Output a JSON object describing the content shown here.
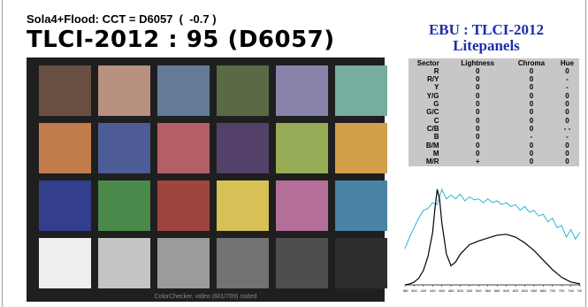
{
  "header": {
    "subtitle": "Sola4+Flood: CCT = D6057  (  -0.7 )",
    "title": "TLCI-2012 : 95 (D6057)"
  },
  "ebu": {
    "title": "EBU : TLCI-2012",
    "subtitle": "Litepanels"
  },
  "table": {
    "headers": [
      "Sector",
      "Lightness",
      "Chroma",
      "Hue"
    ],
    "rows": [
      [
        "R",
        "0",
        "0",
        "0"
      ],
      [
        "R/Y",
        "0",
        "0",
        "-"
      ],
      [
        "Y",
        "0",
        "0",
        "-"
      ],
      [
        "Y/G",
        "0",
        "0",
        "0"
      ],
      [
        "G",
        "0",
        "0",
        "0"
      ],
      [
        "G/C",
        "0",
        "0",
        "0"
      ],
      [
        "C",
        "0",
        "0",
        "0"
      ],
      [
        "C/B",
        "0",
        "0",
        "- -"
      ],
      [
        "B",
        "0",
        "-",
        "-"
      ],
      [
        "B/M",
        "0",
        "0",
        "0"
      ],
      [
        "M",
        "0",
        "0",
        "0"
      ],
      [
        "M/R",
        "+",
        "0",
        "0"
      ]
    ]
  },
  "checker": {
    "caption": "ColorChecker, video (601/709) coded",
    "background": "#1f1f1f",
    "rows": [
      [
        "#6a5042",
        "#b89080",
        "#647b98",
        "#5a6a45",
        "#8783aa",
        "#75ada0"
      ],
      [
        "#c27c4b",
        "#4e5d98",
        "#b35f65",
        "#54416a",
        "#96ac56",
        "#d2a04a"
      ],
      [
        "#333f8c",
        "#4b8a4a",
        "#a04440",
        "#d7c055",
        "#b36e99",
        "#4a83a4"
      ],
      [
        "#eeeeee",
        "#c4c4c4",
        "#9b9b9b",
        "#737373",
        "#4e4e4e",
        "#2e2e2e"
      ]
    ]
  },
  "spectrum": {
    "x_ticks": [
      "380",
      "400",
      "420",
      "440",
      "460",
      "480",
      "500",
      "520",
      "540",
      "560",
      "580",
      "600",
      "620",
      "640",
      "660",
      "680",
      "700",
      "720",
      "740",
      "760"
    ],
    "x_range": [
      380,
      760
    ],
    "test_color": "#000000",
    "reference_color": "#2bb5d4",
    "test_series": [
      [
        380,
        0.0
      ],
      [
        390,
        0.01
      ],
      [
        400,
        0.03
      ],
      [
        410,
        0.07
      ],
      [
        420,
        0.15
      ],
      [
        430,
        0.3
      ],
      [
        440,
        0.55
      ],
      [
        445,
        0.8
      ],
      [
        450,
        1.0
      ],
      [
        455,
        0.9
      ],
      [
        460,
        0.65
      ],
      [
        470,
        0.32
      ],
      [
        480,
        0.2
      ],
      [
        490,
        0.24
      ],
      [
        500,
        0.32
      ],
      [
        520,
        0.42
      ],
      [
        540,
        0.46
      ],
      [
        560,
        0.49
      ],
      [
        580,
        0.52
      ],
      [
        600,
        0.53
      ],
      [
        620,
        0.5
      ],
      [
        640,
        0.44
      ],
      [
        660,
        0.36
      ],
      [
        680,
        0.26
      ],
      [
        700,
        0.16
      ],
      [
        720,
        0.08
      ],
      [
        740,
        0.03
      ],
      [
        760,
        0.01
      ]
    ],
    "reference_series": [
      [
        380,
        0.38
      ],
      [
        390,
        0.5
      ],
      [
        400,
        0.6
      ],
      [
        410,
        0.7
      ],
      [
        420,
        0.78
      ],
      [
        430,
        0.8
      ],
      [
        440,
        0.86
      ],
      [
        450,
        0.84
      ],
      [
        460,
        1.0
      ],
      [
        470,
        0.9
      ],
      [
        480,
        0.94
      ],
      [
        490,
        0.9
      ],
      [
        500,
        0.95
      ],
      [
        510,
        0.88
      ],
      [
        520,
        0.92
      ],
      [
        530,
        0.89
      ],
      [
        540,
        0.9
      ],
      [
        550,
        0.86
      ],
      [
        560,
        0.9
      ],
      [
        570,
        0.86
      ],
      [
        580,
        0.88
      ],
      [
        590,
        0.84
      ],
      [
        600,
        0.86
      ],
      [
        610,
        0.82
      ],
      [
        620,
        0.84
      ],
      [
        630,
        0.78
      ],
      [
        640,
        0.82
      ],
      [
        650,
        0.76
      ],
      [
        660,
        0.78
      ],
      [
        670,
        0.72
      ],
      [
        680,
        0.74
      ],
      [
        690,
        0.66
      ],
      [
        700,
        0.7
      ],
      [
        710,
        0.6
      ],
      [
        720,
        0.62
      ],
      [
        730,
        0.5
      ],
      [
        740,
        0.58
      ],
      [
        750,
        0.48
      ],
      [
        760,
        0.55
      ]
    ]
  }
}
